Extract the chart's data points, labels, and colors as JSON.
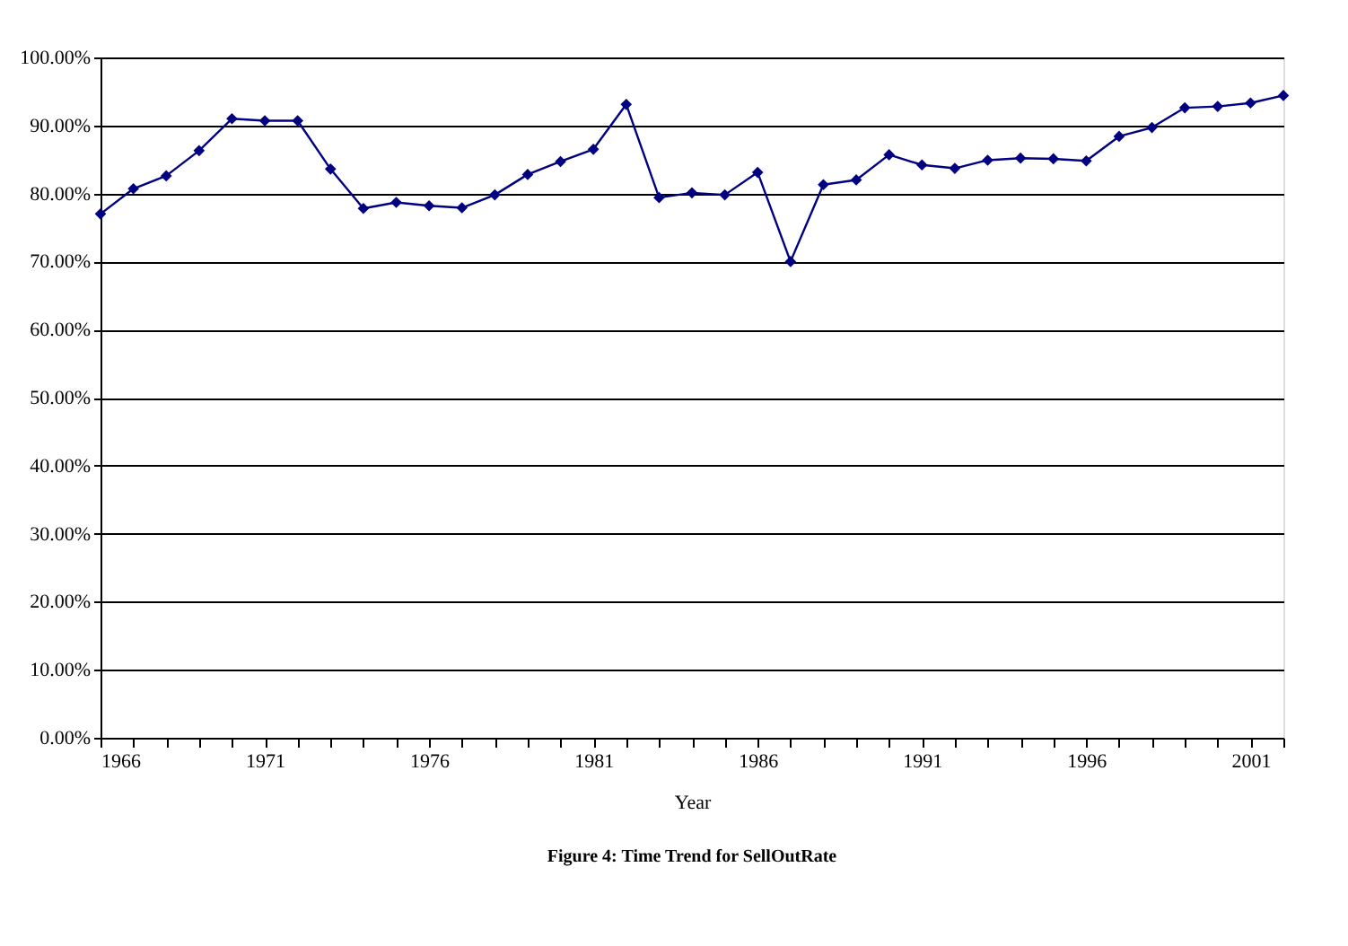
{
  "chart_data": {
    "type": "line",
    "title": "Figure 4:  Time Trend for SellOutRate",
    "xlabel": "Year",
    "x": [
      1966,
      1967,
      1968,
      1969,
      1970,
      1971,
      1972,
      1973,
      1974,
      1975,
      1976,
      1977,
      1978,
      1979,
      1980,
      1981,
      1982,
      1983,
      1984,
      1985,
      1986,
      1987,
      1988,
      1989,
      1990,
      1991,
      1992,
      1993,
      1994,
      1995,
      1996,
      1997,
      1998,
      1999,
      2000,
      2001,
      2002
    ],
    "series": [
      {
        "color": "#000080",
        "values": [
          77.0,
          80.7,
          82.6,
          86.3,
          91.0,
          90.7,
          90.7,
          83.6,
          77.8,
          78.7,
          78.2,
          77.9,
          79.8,
          82.8,
          84.7,
          86.5,
          93.1,
          79.4,
          80.1,
          79.8,
          83.1,
          70.0,
          81.3,
          82.0,
          85.7,
          84.2,
          83.7,
          84.9,
          85.2,
          85.1,
          84.8,
          88.4,
          89.7,
          92.6,
          92.8,
          93.3,
          94.4
        ]
      }
    ],
    "xlim": [
      1966,
      2002
    ],
    "xticks": [
      1966,
      {
        "value": 1967,
        "label": null
      },
      {
        "value": 1968,
        "label": null
      },
      {
        "value": 1969,
        "label": null
      },
      {
        "value": 1970,
        "label": null
      },
      1971,
      {
        "value": 1972,
        "label": null
      },
      {
        "value": 1973,
        "label": null
      },
      {
        "value": 1974,
        "label": null
      },
      {
        "value": 1975,
        "label": null
      },
      1976,
      {
        "value": 1977,
        "label": null
      },
      {
        "value": 1978,
        "label": null
      },
      {
        "value": 1979,
        "label": null
      },
      {
        "value": 1980,
        "label": null
      },
      1981,
      {
        "value": 1982,
        "label": null
      },
      {
        "value": 1983,
        "label": null
      },
      {
        "value": 1984,
        "label": null
      },
      {
        "value": 1985,
        "label": null
      },
      1986,
      {
        "value": 1987,
        "label": null
      },
      {
        "value": 1988,
        "label": null
      },
      {
        "value": 1989,
        "label": null
      },
      {
        "value": 1990,
        "label": null
      },
      1991,
      {
        "value": 1992,
        "label": null
      },
      {
        "value": 1993,
        "label": null
      },
      {
        "value": 1994,
        "label": null
      },
      {
        "value": 1995,
        "label": null
      },
      1996,
      {
        "value": 1997,
        "label": null
      },
      {
        "value": 1998,
        "label": null
      },
      {
        "value": 1999,
        "label": null
      },
      {
        "value": 2000,
        "label": null
      },
      2001,
      {
        "value": 2002,
        "label": null
      }
    ],
    "ylim": [
      0,
      100
    ],
    "yticks": [
      {
        "value": 0,
        "label": "0.00%"
      },
      {
        "value": 10,
        "label": "10.00%"
      },
      {
        "value": 20,
        "label": "20.00%"
      },
      {
        "value": 30,
        "label": "30.00%"
      },
      {
        "value": 40,
        "label": "40.00%"
      },
      {
        "value": 50,
        "label": "50.00%"
      },
      {
        "value": 60,
        "label": "60.00%"
      },
      {
        "value": 70,
        "label": "70.00%"
      },
      {
        "value": 80,
        "label": "80.00%"
      },
      {
        "value": 90,
        "label": "90.00%"
      },
      {
        "value": 100,
        "label": "100.00%"
      }
    ],
    "grid": "y",
    "marker": "diamond",
    "line_style": "solid"
  }
}
